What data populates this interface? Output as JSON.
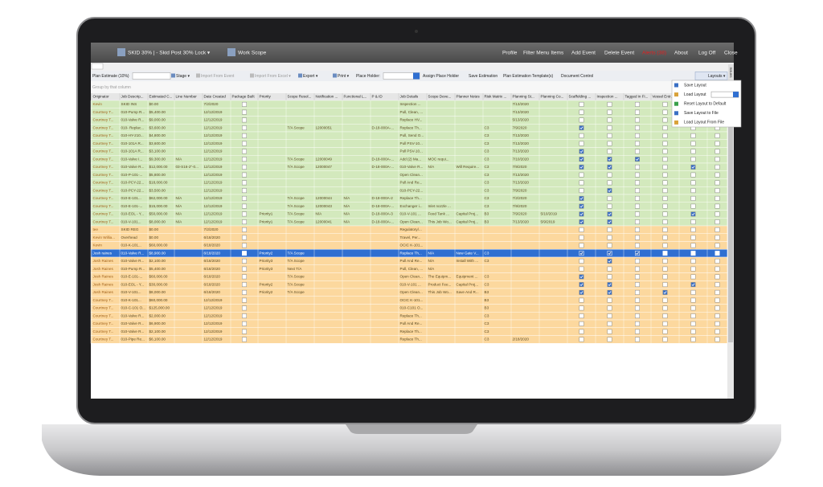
{
  "nav": {
    "left": [
      "SKID 30% | - Skid Post 30% Lock ▾",
      "Work Scope"
    ],
    "right": [
      "Profile",
      "Filter Menu Items",
      "Add Event",
      "Delete Event",
      "Alerts (38)",
      "About",
      "Log Off",
      "Close"
    ],
    "alert_color": "#e02020"
  },
  "toolbar": {
    "plan_estimate": "Plan Estimate (10%)",
    "buttons": [
      "Stage ▾",
      "Import From Event",
      "Import From Excel ▾",
      "Export ▾",
      "Print ▾"
    ],
    "disabled": [
      1,
      2
    ],
    "place_holder": "Place Holder:",
    "actions": [
      "Assign Place Holder",
      "Save Estimation",
      "Plan Estimation Template(s)",
      "Document Control"
    ],
    "layouts": "Layouts ▾",
    "side_tab": "Issues"
  },
  "group_hint": "Group by that column",
  "layouts_menu": [
    "Save Layout",
    "Load Layout",
    "Reset Layout to Default",
    "Save Layout to File",
    "Load Layout From File"
  ],
  "table": {
    "headers": [
      "Originator",
      "Job Descrip...",
      "Estimated C...",
      "Line Number",
      "Date Created",
      "Package Built",
      "Priority",
      "Scope Resol...",
      "Notification ...",
      "Functional L...",
      "P & ID",
      "Job Details",
      "Scope Deve...",
      "Planner Notes",
      "Risk Matrix ...",
      "Planning St...",
      "Planning Co...",
      "Scaffolding ...",
      "Inspection ...",
      "Tagged in Fi...",
      "Vessel Entr..."
    ],
    "rows": [
      {
        "color": "#d3e9bd",
        "cells": [
          "Kevin",
          "SKID INS",
          "$0.00",
          null,
          "7/2/2020",
          null,
          null,
          null,
          null,
          null,
          null,
          "Inspection ...",
          null,
          null,
          null,
          "7/13/2020",
          null
        ],
        "checked": []
      },
      {
        "color": "#d3e9bd",
        "cells": [
          "Courtney T...",
          "010-Pump R...",
          "$5,400.00",
          null,
          "12/12/2019",
          null,
          null,
          null,
          null,
          null,
          null,
          "Pull, Clean, ...",
          null,
          null,
          null,
          "7/13/2020",
          null
        ],
        "checked": []
      },
      {
        "color": "#d3e9bd",
        "cells": [
          "Courtney T...",
          "010-Valve R...",
          "$9,000.00",
          null,
          "12/12/2019",
          null,
          null,
          null,
          null,
          null,
          null,
          "Replace HV...",
          null,
          null,
          null,
          "5/13/2020",
          null
        ],
        "checked": []
      },
      {
        "color": "#d3e9bd",
        "cells": [
          "Courtney T...",
          "010- Replac...",
          "$3,600.00",
          null,
          "12/12/2019",
          null,
          null,
          "T/A Scope",
          "12000051",
          null,
          "D-18-000A-...",
          "Replace Th...",
          null,
          null,
          "C3",
          "7/9/2020",
          null
        ],
        "checked": [
          17
        ]
      },
      {
        "color": "#d3e9bd",
        "cells": [
          "Courtney T...",
          "010-HY-210...",
          "$4,800.00",
          null,
          "12/12/2019",
          null,
          null,
          null,
          null,
          null,
          null,
          "Pull, Send O...",
          null,
          null,
          "C3",
          "7/13/2020",
          null
        ],
        "checked": []
      },
      {
        "color": "#d3e9bd",
        "cells": [
          "Courtney T...",
          "010-101A R...",
          "$3,600.00",
          null,
          "12/12/2019",
          null,
          null,
          null,
          null,
          null,
          null,
          "Pull PSV-10...",
          null,
          null,
          "C3",
          "7/13/2020",
          null
        ],
        "checked": []
      },
      {
        "color": "#d3e9bd",
        "cells": [
          "Courtney T...",
          "010-101A R...",
          "$3,100.00",
          null,
          "12/12/2019",
          null,
          null,
          null,
          null,
          null,
          null,
          "Pull PSV-10...",
          null,
          null,
          "C3",
          "7/13/2020",
          null
        ],
        "checked": [
          17
        ]
      },
      {
        "color": "#d3e9bd",
        "cells": [
          "Courtney T...",
          "010-Valve I...",
          "$9,300.00",
          "N/A",
          "12/12/2019",
          null,
          null,
          "T/A Scope",
          "12000049",
          null,
          "D-18-000A-...",
          "Add (2) Ma...",
          "MOC requi...",
          null,
          "C3",
          "7/10/2020",
          null
        ],
        "checked": [
          17,
          18,
          19
        ]
      },
      {
        "color": "#d3e9bd",
        "cells": [
          "Courtney T...",
          "010-Valve R...",
          "$12,000.00",
          "03-S16-2\"-0...",
          "12/12/2019",
          null,
          null,
          "T/A Scope",
          "12000047",
          null,
          "D-18-000A-...",
          "010-Valve R...",
          "N/A",
          "Will Require...",
          "C3",
          "7/9/2020",
          null
        ],
        "checked": [
          17,
          18,
          21
        ]
      },
      {
        "color": "#d3e9bd",
        "cells": [
          "Courtney T...",
          "010-P-101-...",
          "$5,800.00",
          null,
          "12/12/2019",
          null,
          null,
          null,
          null,
          null,
          null,
          "Open Clean...",
          null,
          null,
          "C3",
          "7/13/2020",
          null
        ],
        "checked": []
      },
      {
        "color": "#d3e9bd",
        "cells": [
          "Courtney T...",
          "010-PCY-22...",
          "$18,000.00",
          null,
          "12/12/2019",
          null,
          null,
          null,
          null,
          null,
          null,
          "Pull And Re...",
          null,
          null,
          "C3",
          "7/13/2020",
          null
        ],
        "checked": []
      },
      {
        "color": "#d3e9bd",
        "cells": [
          "Courtney T...",
          "010-PCY-22...",
          "$3,500.00",
          null,
          "12/12/2019",
          null,
          null,
          null,
          null,
          null,
          null,
          "010-PCY-22...",
          null,
          null,
          "C3",
          "7/9/2020",
          null
        ],
        "checked": [
          18
        ]
      },
      {
        "color": "#d3e9bd",
        "cells": [
          "Courtney T...",
          "010-E-101...",
          "$62,000.00",
          "N/A",
          "12/12/2019",
          null,
          null,
          "T/A Scope",
          "12000044",
          "N/A",
          "D-18-000A-2",
          "Replace Th...",
          null,
          null,
          "C3",
          "7/2/2020",
          null
        ],
        "checked": [
          17
        ]
      },
      {
        "color": "#d3e9bd",
        "cells": [
          "Courtney T...",
          "010-E-101-...",
          "$15,000.00",
          "N/A",
          "12/12/2019",
          null,
          null,
          "T/A Scope",
          "12000043",
          "N/A",
          "D-18-000A-...",
          "Exchanger i...",
          "Inlet nozzle ...",
          null,
          "C3",
          "7/9/2020",
          null
        ],
        "checked": [
          17
        ]
      },
      {
        "color": "#d3e9bd",
        "cells": [
          "Courtney T...",
          "010-EOL - Y...",
          "$50,000.00",
          "N/A",
          "12/12/2019",
          null,
          "Priority1",
          "T/A Scope",
          "N/A",
          "N/A",
          "D-18-000A-3",
          "010-V-101 ...",
          "Feed Tank ...",
          "Capital Proj...",
          "B3",
          "7/9/2020",
          "5/10/2019"
        ],
        "checked": [
          17,
          18,
          21
        ]
      },
      {
        "color": "#d3e9bd",
        "cells": [
          "Courtney T...",
          "010-V-101...",
          "$8,000.00",
          "N/A",
          "12/12/2019",
          null,
          "Priority1",
          "T/A Scope",
          "12000041",
          "N/A",
          "D-18-000A-...",
          "Open Clean...",
          "This Job Wo...",
          "Capital Proj...",
          "B3",
          "7/13/2020",
          "5/9/2019"
        ],
        "checked": [
          17,
          18
        ]
      },
      {
        "color": "#fcd89e",
        "cells": [
          "tee",
          "SKID REG",
          "$0.00",
          null,
          "7/2/2020",
          null,
          null,
          null,
          null,
          null,
          null,
          "Regulatory/...",
          null,
          null,
          null,
          null,
          null
        ],
        "checked": []
      },
      {
        "color": "#fcd89e",
        "cells": [
          "Kevin Willia...",
          "Overhead",
          "$0.00",
          null,
          "6/18/2020",
          null,
          null,
          null,
          null,
          null,
          null,
          "Travel, Per...",
          null,
          null,
          null,
          null,
          null
        ],
        "checked": []
      },
      {
        "color": "#fcd89e",
        "cells": [
          "Kevin",
          "010-K-101...",
          "$60,000.00",
          null,
          "6/18/2020",
          null,
          null,
          null,
          null,
          null,
          null,
          "OCIC K-101...",
          null,
          null,
          null,
          null,
          null
        ],
        "checked": []
      },
      {
        "color": "#2f6fd1",
        "cells": [
          "Josh raines",
          "010-Valve R...",
          "$8,900.00",
          null,
          "6/18/2020",
          null,
          "Priority2",
          "T/A Scope",
          null,
          null,
          null,
          "Replace Th...",
          "N/A",
          "New Gate V...",
          "C3",
          null,
          null
        ],
        "checked": [
          17,
          18,
          19
        ]
      },
      {
        "color": "#fcd89e",
        "cells": [
          "Josh Raines",
          "010-Valve R...",
          "$2,100.00",
          null,
          "6/18/2020",
          null,
          "Priority3",
          "T/A Scope",
          null,
          null,
          null,
          "Pull And Re...",
          "N/A",
          "Install With ...",
          "C3",
          null,
          null
        ],
        "checked": [
          18
        ]
      },
      {
        "color": "#fcd89e",
        "cells": [
          "Josh Raines",
          "010-Pump R...",
          "$5,400.00",
          null,
          "6/18/2020",
          null,
          "Priority3",
          "Next T/A",
          null,
          null,
          null,
          "Pull, Clean, ...",
          "N/A",
          null,
          null,
          null,
          null
        ],
        "checked": []
      },
      {
        "color": "#fcd89e",
        "cells": [
          "Josh Raines",
          "010-E-101-...",
          "$60,000.00",
          null,
          "6/18/2020",
          null,
          null,
          "T/A Scope",
          null,
          null,
          null,
          "Open Clean...",
          "The Equipm...",
          "Equipment ...",
          "C3",
          null,
          null
        ],
        "checked": [
          17
        ]
      },
      {
        "color": "#fcd89e",
        "cells": [
          "Josh Raines",
          "010-EOL - Y...",
          "$30,000.00",
          null,
          "6/18/2020",
          null,
          "Priority2",
          "T/A Scope",
          null,
          null,
          null,
          "010-V-101 ...",
          "Product Fee...",
          "Capital Proj...",
          "C3",
          null,
          null
        ],
        "checked": [
          17,
          18,
          21
        ]
      },
      {
        "color": "#fcd89e",
        "cells": [
          "Josh Raines",
          "010-V-101...",
          "$8,000.00",
          null,
          "6/18/2020",
          null,
          "Priority2",
          "T/A Scope",
          null,
          null,
          null,
          "Open Clean...",
          "This Job Wo...",
          "Save And R...",
          "B3",
          null,
          null
        ],
        "checked": [
          17,
          18,
          20
        ]
      },
      {
        "color": "#fcd89e",
        "cells": [
          "Courtney T...",
          "010-K-101...",
          "$60,000.00",
          null,
          "12/12/2019",
          null,
          null,
          null,
          null,
          null,
          null,
          "OCIC K-101...",
          null,
          null,
          "B3",
          null,
          null
        ],
        "checked": []
      },
      {
        "color": "#fcd89e",
        "cells": [
          "Courtney T...",
          "010-C-101 O...",
          "$125,000.00",
          null,
          "12/12/2019",
          null,
          null,
          null,
          null,
          null,
          null,
          "010-C101 O...",
          null,
          null,
          "B3",
          null,
          null
        ],
        "checked": []
      },
      {
        "color": "#fcd89e",
        "cells": [
          "Courtney T...",
          "010-Valve R...",
          "$2,000.00",
          null,
          "12/12/2019",
          null,
          null,
          null,
          null,
          null,
          null,
          "Replace Th...",
          null,
          null,
          "C3",
          null,
          null
        ],
        "checked": []
      },
      {
        "color": "#fcd89e",
        "cells": [
          "Courtney T...",
          "010-Valve R...",
          "$6,900.00",
          null,
          "12/12/2019",
          null,
          null,
          null,
          null,
          null,
          null,
          "Pull And Re...",
          null,
          null,
          "C3",
          null,
          null
        ],
        "checked": []
      },
      {
        "color": "#fcd89e",
        "cells": [
          "Courtney T...",
          "010-Valve R...",
          "$2,100.00",
          null,
          "12/12/2019",
          null,
          null,
          null,
          null,
          null,
          null,
          "Replace Th...",
          null,
          null,
          "C3",
          null,
          null
        ],
        "checked": []
      },
      {
        "color": "#fcd89e",
        "cells": [
          "Courtney T...",
          "010-Pipe Re...",
          "$6,100.00",
          null,
          "12/12/2019",
          null,
          null,
          null,
          null,
          null,
          null,
          "Replace Th...",
          null,
          null,
          "C3",
          "2/18/2020",
          null
        ],
        "checked": []
      }
    ]
  }
}
